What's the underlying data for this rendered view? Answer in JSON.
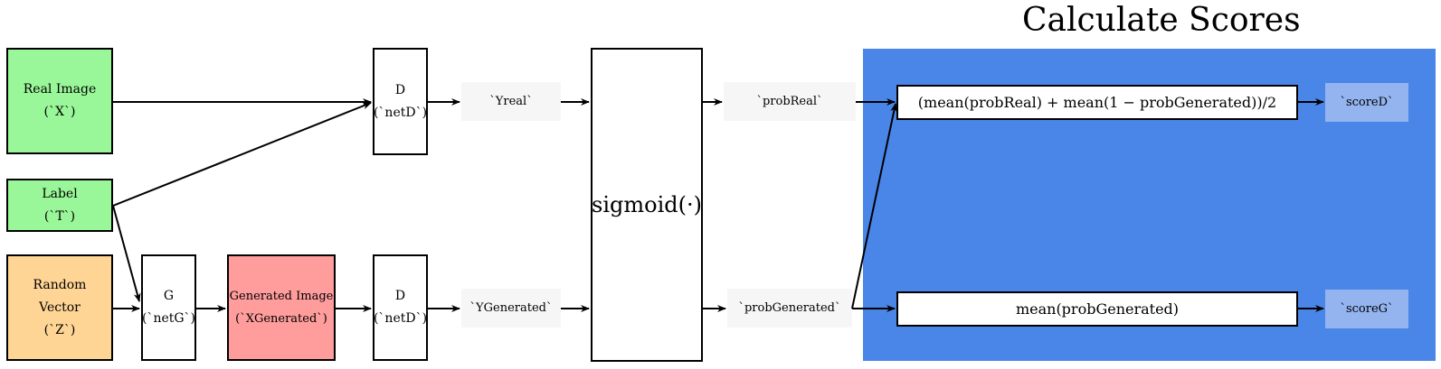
{
  "title": "Calculate Scores",
  "colors": {
    "input_green": "#99f799",
    "input_orange": "#ffd595",
    "generated_red": "#ff9c9c",
    "panel_blue": "#4a86e8",
    "score_blue": "#93b4ef",
    "label_gray": "#f6f6f6"
  },
  "nodes": {
    "real_image": {
      "line1": "Real Image",
      "line2": "(`X`)"
    },
    "label": {
      "line1": "Label",
      "line2": "(`T`)"
    },
    "random_vector": {
      "line1": "Random",
      "line2": "Vector",
      "line3": "(`Z`)"
    },
    "generator": {
      "line1": "G",
      "line2": "(`netG`)"
    },
    "generated_image": {
      "line1": "Generated Image",
      "line2": "(`XGenerated`)"
    },
    "disc_real": {
      "line1": "D",
      "line2": "(`netD`)"
    },
    "disc_gen": {
      "line1": "D",
      "line2": "(`netD`)"
    },
    "y_real": "`Yreal`",
    "y_generated": "`YGenerated`",
    "sigmoid": "sigmoid(·)",
    "prob_real": "`probReal`",
    "prob_generated": "`probGenerated`",
    "formula_d": "(mean(probReal) + mean(1 − probGenerated))/2",
    "formula_g": "mean(probGenerated)",
    "score_d": "`scoreD`",
    "score_g": "`scoreG`"
  }
}
